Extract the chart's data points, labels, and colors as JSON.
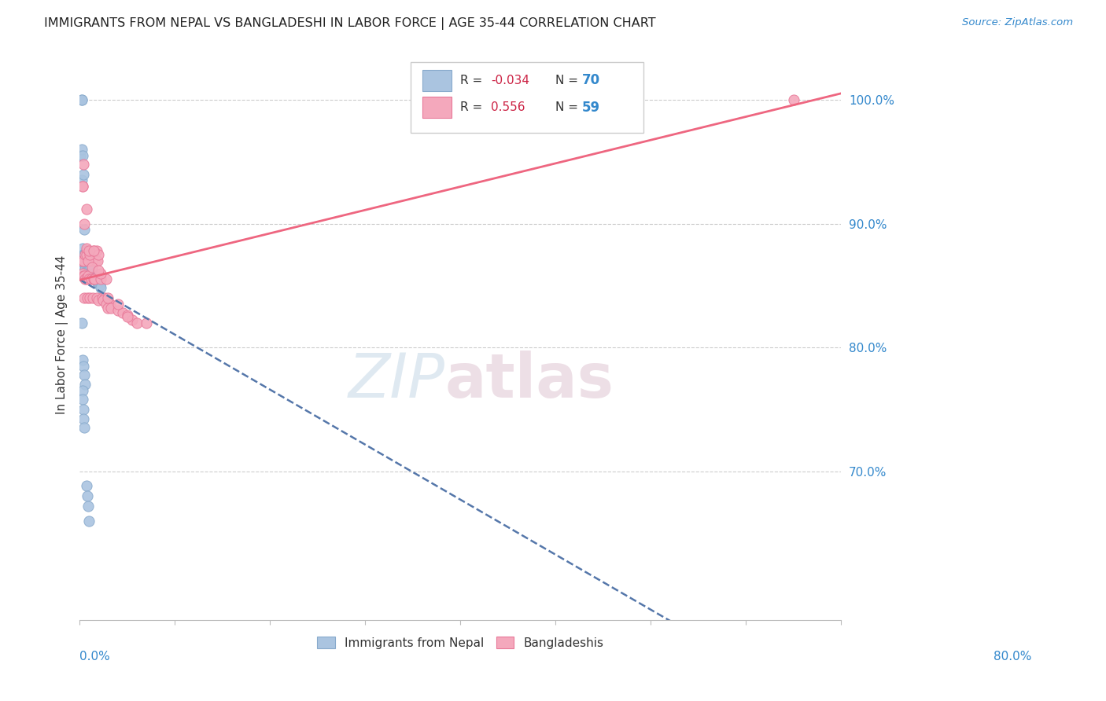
{
  "title": "IMMIGRANTS FROM NEPAL VS BANGLADESHI IN LABOR FORCE | AGE 35-44 CORRELATION CHART",
  "source": "Source: ZipAtlas.com",
  "ylabel": "In Labor Force | Age 35-44",
  "legend_r1": "R = -0.034",
  "legend_n1": "N = 70",
  "legend_r2": "R =  0.556",
  "legend_n2": "N = 59",
  "nepal_color": "#aac4e0",
  "bangla_color": "#f4a8bc",
  "nepal_edge": "#88aacc",
  "bangla_edge": "#e87898",
  "trend_nepal_color": "#5577aa",
  "trend_bangla_color": "#ee6680",
  "watermark_zip": "ZIP",
  "watermark_atlas": "atlas",
  "nepal_x": [
    0.001,
    0.001,
    0.002,
    0.002,
    0.002,
    0.002,
    0.002,
    0.003,
    0.003,
    0.003,
    0.003,
    0.003,
    0.003,
    0.004,
    0.004,
    0.004,
    0.004,
    0.004,
    0.005,
    0.005,
    0.005,
    0.005,
    0.005,
    0.006,
    0.006,
    0.006,
    0.006,
    0.006,
    0.007,
    0.007,
    0.007,
    0.007,
    0.007,
    0.008,
    0.008,
    0.008,
    0.009,
    0.009,
    0.009,
    0.01,
    0.01,
    0.01,
    0.011,
    0.011,
    0.012,
    0.012,
    0.013,
    0.014,
    0.015,
    0.016,
    0.017,
    0.018,
    0.019,
    0.02,
    0.021,
    0.022,
    0.003,
    0.004,
    0.005,
    0.006,
    0.002,
    0.003,
    0.003,
    0.004,
    0.004,
    0.005,
    0.007,
    0.008,
    0.009,
    0.01
  ],
  "nepal_y": [
    0.955,
    0.87,
    0.96,
    0.935,
    1.0,
    1.0,
    0.87,
    0.955,
    0.87,
    0.875,
    0.88,
    0.87,
    0.86,
    0.94,
    0.875,
    0.87,
    0.865,
    0.87,
    0.895,
    0.873,
    0.868,
    0.875,
    0.87,
    0.873,
    0.87,
    0.868,
    0.863,
    0.87,
    0.878,
    0.875,
    0.87,
    0.868,
    0.875,
    0.87,
    0.865,
    0.87,
    0.868,
    0.863,
    0.87,
    0.865,
    0.868,
    0.87,
    0.865,
    0.863,
    0.862,
    0.86,
    0.862,
    0.86,
    0.858,
    0.856,
    0.855,
    0.854,
    0.852,
    0.852,
    0.85,
    0.848,
    0.79,
    0.785,
    0.778,
    0.77,
    0.82,
    0.765,
    0.758,
    0.75,
    0.742,
    0.735,
    0.688,
    0.68,
    0.672,
    0.66
  ],
  "bangla_x": [
    0.002,
    0.003,
    0.003,
    0.004,
    0.004,
    0.005,
    0.005,
    0.006,
    0.006,
    0.007,
    0.007,
    0.008,
    0.009,
    0.01,
    0.011,
    0.012,
    0.013,
    0.014,
    0.015,
    0.016,
    0.017,
    0.018,
    0.019,
    0.02,
    0.022,
    0.024,
    0.026,
    0.028,
    0.03,
    0.032,
    0.003,
    0.005,
    0.007,
    0.009,
    0.011,
    0.013,
    0.015,
    0.018,
    0.02,
    0.022,
    0.025,
    0.028,
    0.03,
    0.033,
    0.04,
    0.045,
    0.05,
    0.055,
    0.06,
    0.07,
    0.75,
    0.004,
    0.007,
    0.01,
    0.015,
    0.02,
    0.03,
    0.04,
    0.05
  ],
  "bangla_y": [
    0.87,
    0.93,
    0.86,
    0.858,
    0.87,
    0.84,
    0.858,
    0.855,
    0.875,
    0.855,
    0.875,
    0.84,
    0.858,
    0.855,
    0.84,
    0.855,
    0.87,
    0.84,
    0.855,
    0.855,
    0.87,
    0.84,
    0.87,
    0.838,
    0.855,
    0.84,
    0.84,
    0.855,
    0.838,
    0.835,
    0.93,
    0.9,
    0.88,
    0.87,
    0.875,
    0.865,
    0.878,
    0.878,
    0.875,
    0.86,
    0.838,
    0.835,
    0.832,
    0.832,
    0.83,
    0.828,
    0.826,
    0.822,
    0.82,
    0.82,
    1.0,
    0.948,
    0.912,
    0.878,
    0.878,
    0.862,
    0.84,
    0.835,
    0.825
  ],
  "xlim": [
    0.0,
    0.8
  ],
  "ylim": [
    0.58,
    1.04
  ],
  "yticks": [
    0.6,
    0.7,
    0.8,
    0.9,
    1.0
  ],
  "ytick_labels": [
    "",
    "70.0%",
    "80.0%",
    "90.0%",
    "100.0%"
  ],
  "grid_lines": [
    0.7,
    0.8,
    0.9,
    1.0
  ]
}
